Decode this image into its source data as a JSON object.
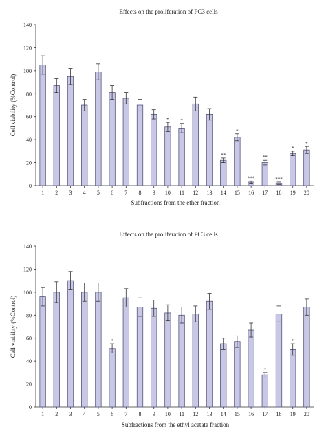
{
  "chart_data": [
    {
      "type": "bar",
      "title": "Effects on the proliferation of PC3 cells",
      "xlabel": "Subfractions from the ether fraction",
      "ylabel": "Cell viability (%Control)",
      "ylim": [
        0,
        140
      ],
      "yticks": [
        0,
        20,
        40,
        60,
        80,
        100,
        120,
        140
      ],
      "categories": [
        "1",
        "2",
        "3",
        "4",
        "5",
        "6",
        "7",
        "8",
        "9",
        "10",
        "11",
        "12",
        "13",
        "14",
        "15",
        "16",
        "17",
        "18",
        "19",
        "20"
      ],
      "values": [
        105,
        87,
        95,
        70,
        99,
        81,
        76,
        70,
        62,
        51,
        50,
        71,
        62,
        22,
        42,
        3,
        20,
        2,
        28,
        31
      ],
      "errors": [
        8,
        6,
        7,
        5,
        7,
        6,
        5,
        5,
        4,
        4,
        4,
        6,
        5,
        2,
        3,
        1,
        2,
        1,
        2,
        3
      ],
      "significance": [
        "",
        "",
        "",
        "",
        "",
        "",
        "",
        "",
        "",
        "*",
        "*",
        "",
        "",
        "**",
        "*",
        "***",
        "**",
        "***",
        "*",
        "*"
      ]
    },
    {
      "type": "bar",
      "title": "Effects on the proliferation of PC3 cells",
      "xlabel": "Subfractions from the ethyl acetate fraction",
      "ylabel": "Cell viability (%Control)",
      "ylim": [
        0,
        140
      ],
      "yticks": [
        0,
        20,
        40,
        60,
        80,
        100,
        120,
        140
      ],
      "categories": [
        "1",
        "2",
        "3",
        "4",
        "5",
        "6",
        "7",
        "8",
        "9",
        "10",
        "11",
        "12",
        "13",
        "14",
        "15",
        "16",
        "17",
        "18",
        "19",
        "20"
      ],
      "values": [
        96,
        100,
        110,
        100,
        100,
        51,
        95,
        87,
        86,
        82,
        80,
        81,
        92,
        55,
        57,
        67,
        28,
        81,
        50,
        87
      ],
      "errors": [
        8,
        9,
        8,
        8,
        8,
        4,
        8,
        8,
        7,
        7,
        7,
        7,
        7,
        5,
        5,
        6,
        2,
        7,
        5,
        7
      ],
      "significance": [
        "",
        "",
        "",
        "",
        "",
        "*",
        "",
        "",
        "",
        "",
        "",
        "",
        "",
        "",
        "",
        "",
        "*",
        "",
        "*",
        ""
      ]
    }
  ]
}
